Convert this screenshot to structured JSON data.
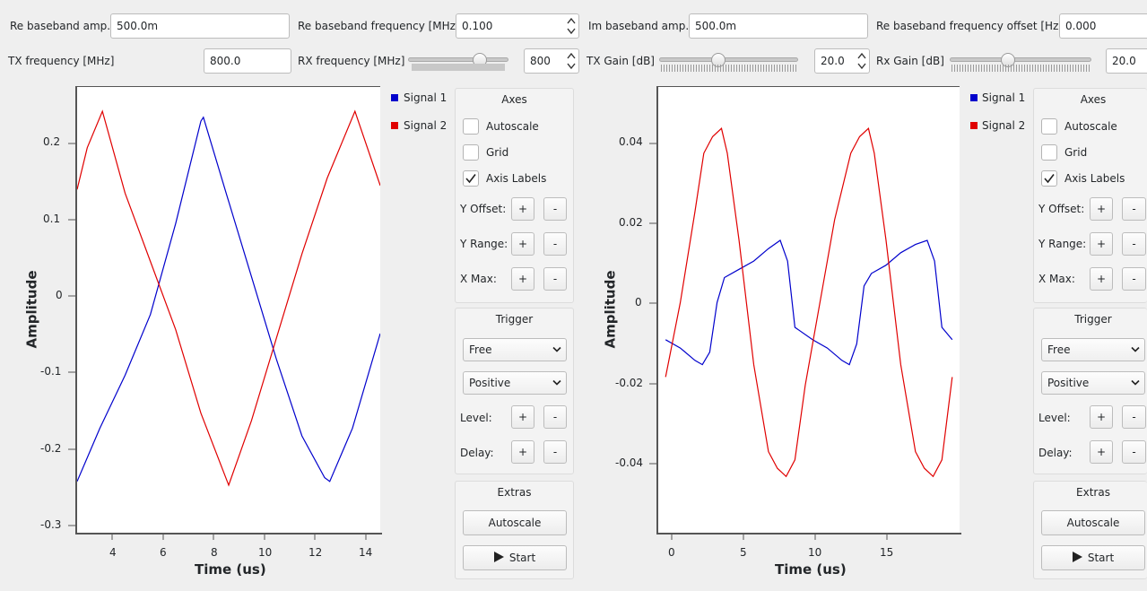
{
  "toolbar": {
    "re_amp_label": "Re baseband amp.:",
    "re_amp_value": "500.0m",
    "re_freq_label": "Re baseband frequency [MHz]",
    "re_freq_value": "0.100",
    "im_amp_label": "Im baseband amp.:",
    "im_amp_value": "500.0m",
    "re_offset_label": "Re baseband frequency offset  [Hz]",
    "re_offset_value": "0.000",
    "tx_freq_label": "TX frequency [MHz]",
    "tx_freq_value": "800.0",
    "rx_freq_label": "RX frequency [MHz]",
    "rx_freq_value": "800",
    "rx_freq_slider": 0.75,
    "tx_gain_label": "TX Gain [dB]",
    "tx_gain_value": "20.0",
    "tx_gain_slider": 0.42,
    "rx_gain_label": "Rx Gain [dB]",
    "rx_gain_value": "20.0",
    "rx_gain_slider": 0.4
  },
  "scopes": [
    {
      "legend": [
        "Signal 1",
        "Signal 2"
      ],
      "ylabel": "Amplitude",
      "xlabel": "Time (us)",
      "xticks": [
        "4",
        "6",
        "8",
        "10",
        "12",
        "14"
      ],
      "yticks": [
        "0.2",
        "0.1",
        "0",
        "-0.1",
        "-0.2",
        "-0.3"
      ]
    },
    {
      "legend": [
        "Signal 1",
        "Signal 2"
      ],
      "ylabel": "Amplitude",
      "xlabel": "Time (us)",
      "xticks": [
        "0",
        "5",
        "10",
        "15"
      ],
      "yticks": [
        "0.04",
        "0.02",
        "0",
        "-0.02",
        "-0.04"
      ]
    }
  ],
  "controls": {
    "axes_title": "Axes",
    "autoscale_label": "Autoscale",
    "grid_label": "Grid",
    "axis_labels_label": "Axis Labels",
    "autoscale_checked": false,
    "grid_checked": false,
    "axis_labels_checked": true,
    "y_offset_label": "Y Offset:",
    "y_range_label": "Y Range:",
    "x_max_label": "X Max:",
    "plus": "+",
    "minus": "-",
    "trigger_title": "Trigger",
    "trigger_mode": "Free",
    "trigger_slope": "Positive",
    "level_label": "Level:",
    "delay_label": "Delay:",
    "extras_title": "Extras",
    "autoscale_button": "Autoscale",
    "start_button": "Start"
  },
  "colors": {
    "signal1": "#0000cc",
    "signal2": "#e00000"
  },
  "chart_data": [
    {
      "type": "line",
      "xlim": [
        2.6,
        14.6
      ],
      "ylim": [
        -0.31,
        0.28
      ],
      "xlabel": "Time (us)",
      "ylabel": "Amplitude",
      "legend": "right",
      "grid": false,
      "series": [
        {
          "name": "Signal 1",
          "color": "#0000cc",
          "x": [
            2.6,
            3.5,
            4.5,
            5.5,
            6.5,
            7.5,
            7.6,
            8.5,
            9.5,
            10.5,
            11.5,
            12.4,
            12.6,
            13.5,
            14.6
          ],
          "y": [
            -0.24,
            -0.17,
            -0.1,
            -0.02,
            0.1,
            0.235,
            0.24,
            0.14,
            0.03,
            -0.08,
            -0.18,
            -0.235,
            -0.24,
            -0.17,
            -0.045
          ]
        },
        {
          "name": "Signal 2",
          "color": "#e00000",
          "x": [
            2.6,
            3.0,
            3.6,
            4.5,
            5.5,
            6.5,
            7.5,
            8.6,
            9.5,
            10.5,
            11.5,
            12.5,
            13.6,
            14.6
          ],
          "y": [
            0.145,
            0.2,
            0.248,
            0.14,
            0.05,
            -0.04,
            -0.15,
            -0.245,
            -0.16,
            -0.05,
            0.06,
            0.16,
            0.248,
            0.15
          ]
        }
      ]
    },
    {
      "type": "line",
      "xlim": [
        -0.5,
        20
      ],
      "ylim": [
        -0.056,
        0.052
      ],
      "xlabel": "Time (us)",
      "ylabel": "Amplitude",
      "legend": "right",
      "grid": false,
      "series": [
        {
          "name": "Signal 1",
          "color": "#0000cc",
          "x": [
            0,
            1,
            2,
            2.5,
            3,
            3.5,
            4,
            5,
            6,
            7,
            7.8,
            8.3,
            8.8,
            10,
            11,
            12,
            12.5,
            13,
            13.5,
            14,
            15,
            16,
            17,
            17.8,
            18.3,
            18.8,
            19.5
          ],
          "y": [
            -0.009,
            -0.011,
            -0.014,
            -0.015,
            -0.012,
            0.0,
            0.006,
            0.008,
            0.01,
            0.013,
            0.015,
            0.01,
            -0.006,
            -0.009,
            -0.011,
            -0.014,
            -0.015,
            -0.01,
            0.004,
            0.007,
            0.009,
            0.012,
            0.014,
            0.015,
            0.01,
            -0.006,
            -0.009
          ]
        },
        {
          "name": "Signal 2",
          "color": "#e00000",
          "x": [
            0,
            1,
            2,
            2.6,
            3.2,
            3.8,
            4.2,
            5,
            6,
            7,
            7.6,
            8.2,
            8.8,
            9.5,
            10.5,
            11.5,
            12.6,
            13.2,
            13.8,
            14.2,
            15,
            16,
            17,
            17.6,
            18.2,
            18.8,
            19.5
          ],
          "y": [
            -0.018,
            0.0,
            0.022,
            0.036,
            0.04,
            0.042,
            0.036,
            0.015,
            -0.015,
            -0.036,
            -0.04,
            -0.042,
            -0.038,
            -0.02,
            0.0,
            0.02,
            0.036,
            0.04,
            0.042,
            0.036,
            0.015,
            -0.015,
            -0.036,
            -0.04,
            -0.042,
            -0.038,
            -0.018
          ]
        }
      ]
    }
  ]
}
